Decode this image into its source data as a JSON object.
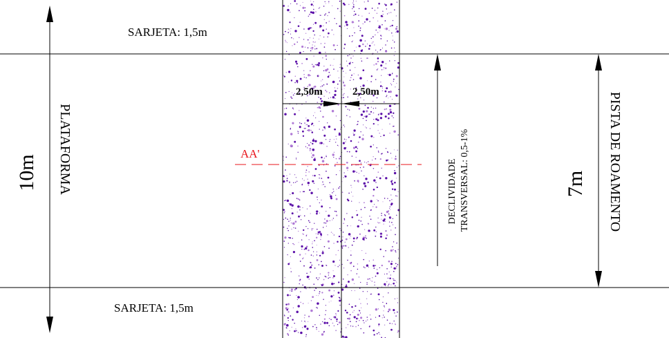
{
  "labels": {
    "gutter_top": "SARJETA: 1,5m",
    "gutter_bottom": "SARJETA: 1,5m",
    "platform": "PLATAFORMA",
    "platform_width": "10m",
    "lane_left": "2,50m",
    "lane_right": "2,50m",
    "section": "AA'",
    "slope_line1": "DECLIVIDADE",
    "slope_line2": "TRANSVERSAL: 0,5-1%",
    "runway": "PISTA DE ROAMENTO",
    "runway_width": "7m"
  },
  "colors": {
    "line": "#000000",
    "section_line": "#e8141b",
    "speckle_primary": "#5b0fa8",
    "speckle_secondary": "#b07ad6"
  }
}
